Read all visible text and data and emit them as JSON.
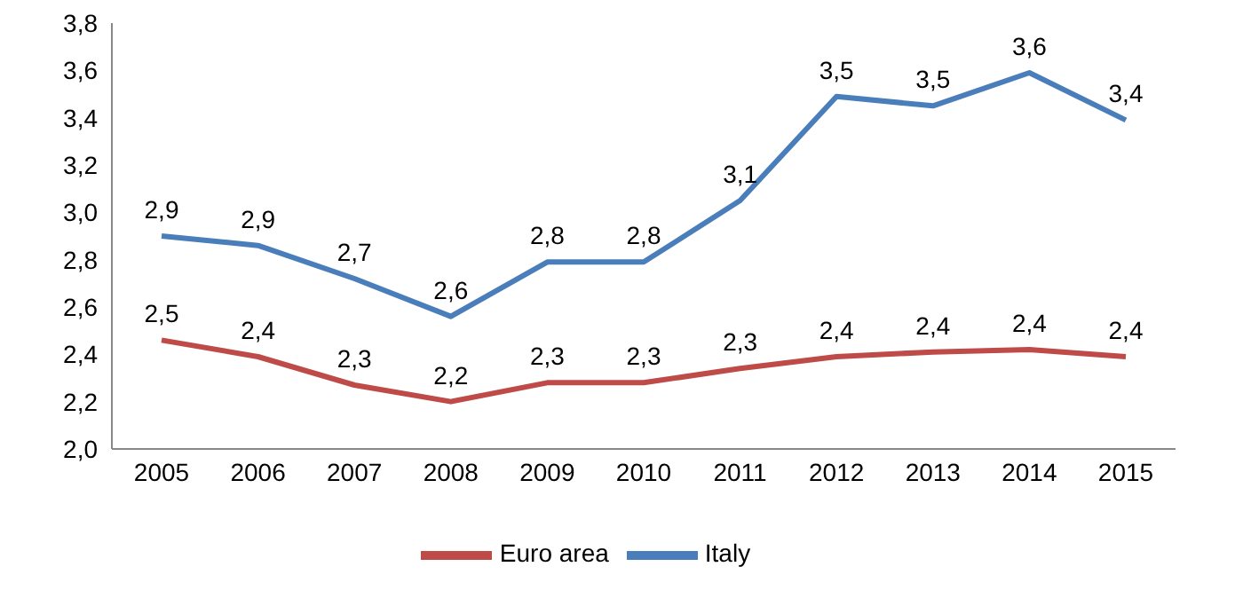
{
  "chart_data": {
    "type": "line",
    "categories": [
      "2005",
      "2006",
      "2007",
      "2008",
      "2009",
      "2010",
      "2011",
      "2012",
      "2013",
      "2014",
      "2015"
    ],
    "series": [
      {
        "name": "Italy",
        "color": "#4a7ebb",
        "values": [
          2.9,
          2.86,
          2.72,
          2.56,
          2.79,
          2.79,
          3.05,
          3.49,
          3.45,
          3.59,
          3.39
        ],
        "value_labels": [
          "2,9",
          "2,9",
          "2,7",
          "2,6",
          "2,8",
          "2,8",
          "3,1",
          "3,5",
          "3,5",
          "3,6",
          "3,4"
        ]
      },
      {
        "name": "Euro area",
        "color": "#be4b48",
        "values": [
          2.46,
          2.39,
          2.27,
          2.2,
          2.28,
          2.28,
          2.34,
          2.39,
          2.41,
          2.42,
          2.39
        ],
        "value_labels": [
          "2,5",
          "2,4",
          "2,3",
          "2,2",
          "2,3",
          "2,3",
          "2,3",
          "2,4",
          "2,4",
          "2,4",
          "2,4"
        ]
      }
    ],
    "ylim": [
      2.0,
      3.8
    ],
    "yticks": [
      {
        "value": 2.0,
        "label": "2,0"
      },
      {
        "value": 2.2,
        "label": "2,2"
      },
      {
        "value": 2.4,
        "label": "2,4"
      },
      {
        "value": 2.6,
        "label": "2,6"
      },
      {
        "value": 2.8,
        "label": "2,8"
      },
      {
        "value": 3.0,
        "label": "3,0"
      },
      {
        "value": 3.2,
        "label": "3,2"
      },
      {
        "value": 3.4,
        "label": "3,4"
      },
      {
        "value": 3.6,
        "label": "3,6"
      },
      {
        "value": 3.8,
        "label": "3,8"
      }
    ],
    "grid": false,
    "legend": "bottom",
    "marker": "none",
    "line_style": "solid"
  }
}
